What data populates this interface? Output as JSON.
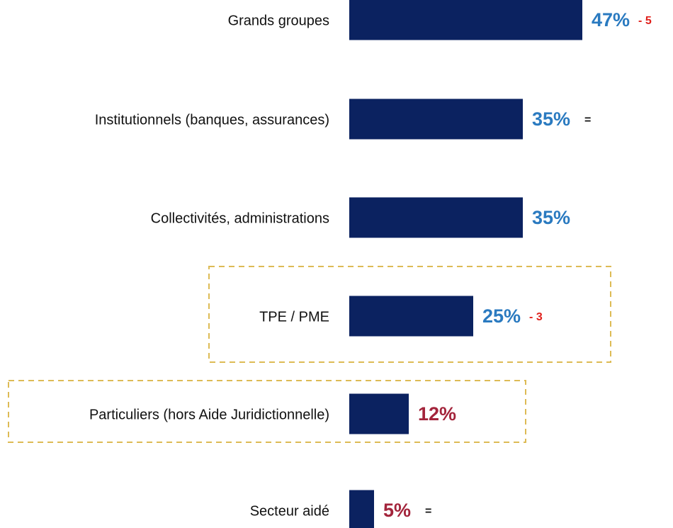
{
  "chart_data": {
    "type": "hbar",
    "categories": [
      "Grands groupes",
      "Institutionnels (banques, assurances)",
      "Collectivités, administrations",
      "TPE / PME",
      "Particuliers (hors Aide Juridictionnelle)",
      "Secteur aidé"
    ],
    "values": [
      47,
      35,
      35,
      25,
      12,
      5
    ],
    "value_labels": [
      "47%",
      "35%",
      "35%",
      "25%",
      "12%",
      "5%"
    ],
    "value_label_colors": [
      "#2A7AC0",
      "#2A7AC0",
      "#2A7AC0",
      "#2A7AC0",
      "#A3243B",
      "#A3243B"
    ],
    "changes": [
      "- 5",
      "=",
      null,
      "- 3",
      null,
      "="
    ],
    "change_colors": [
      "#E0201B",
      "#111111",
      null,
      "#E0201B",
      null,
      "#111111"
    ],
    "color": "#0B2260",
    "xlim": [
      0,
      50
    ]
  }
}
